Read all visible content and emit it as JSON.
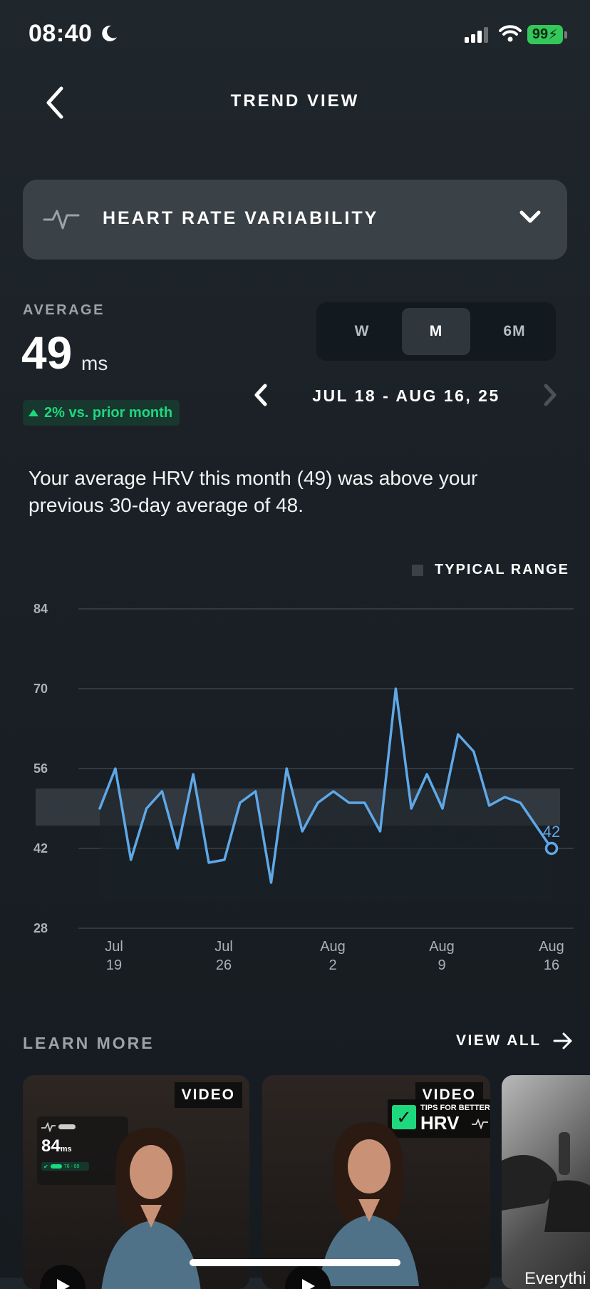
{
  "status_bar": {
    "time": "08:40",
    "battery": "99"
  },
  "header": {
    "title": "TREND VIEW"
  },
  "metric_selector": {
    "label": "HEART RATE VARIABILITY"
  },
  "average": {
    "label": "AVERAGE",
    "value": "49",
    "unit": "ms",
    "delta": "2% vs. prior month"
  },
  "period_toggle": {
    "options": [
      "W",
      "M",
      "6M"
    ],
    "selected": "M"
  },
  "date_range": "JUL 18 - AUG 16, 25",
  "insight": "Your average HRV this month (49) was above your previous 30-day average of 48.",
  "legend": {
    "label": "TYPICAL RANGE"
  },
  "chart_data": {
    "type": "line",
    "y_ticks": [
      84,
      70,
      56,
      42,
      28
    ],
    "ylim": [
      28,
      84
    ],
    "x_ticks": [
      {
        "top": "Jul",
        "bottom": "19"
      },
      {
        "top": "Jul",
        "bottom": "26"
      },
      {
        "top": "Aug",
        "bottom": "2"
      },
      {
        "top": "Aug",
        "bottom": "9"
      },
      {
        "top": "Aug",
        "bottom": "16"
      }
    ],
    "typical_range": [
      46,
      52.5
    ],
    "values": [
      49,
      56,
      40,
      49,
      52,
      42,
      55,
      39.5,
      40,
      50,
      52,
      36,
      56,
      45,
      50,
      52,
      50,
      50,
      45,
      70,
      49,
      55,
      49,
      62,
      59,
      49.5,
      51,
      50,
      46,
      42
    ],
    "last_value_label": "42",
    "colors": {
      "line": "#5fa8e8",
      "range": "#3a4248",
      "grid": "#3a4248"
    }
  },
  "learn_more": {
    "title": "LEARN MORE",
    "view_all": "VIEW ALL",
    "cards": [
      {
        "tag": "VIDEO",
        "overlay_value": "84",
        "overlay_unit": "ms",
        "overlay_range": "76 - 89"
      },
      {
        "tag": "VIDEO",
        "overlay_small": "TIPS FOR BETTER",
        "overlay_big": "HRV"
      },
      {
        "caption": "Everythi"
      }
    ]
  }
}
